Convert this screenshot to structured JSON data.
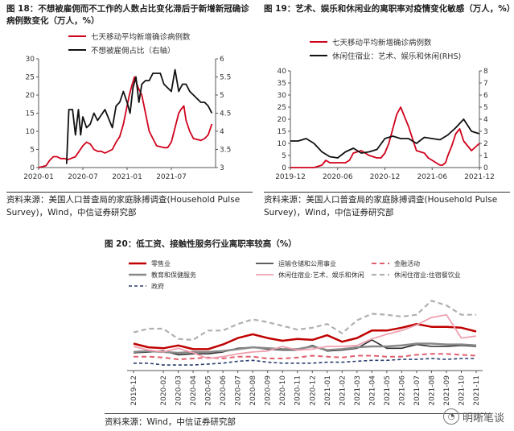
{
  "fig18": {
    "title": "图 18：不想被雇佣而不工作的人数占比变化滞后于新增新冠确诊病例数变化（万人，%）",
    "source": "资料来源：美国人口普查局的家庭脉搏调查(Household Pulse Survey)，Wind，中信证券研究部"
  },
  "fig19": {
    "title": "图 19：艺术、娱乐和休闲业的离职率对疫情变化敏感（万人，%）",
    "source": "资料来源：美国人口普查局的家庭脉搏调查(Household Pulse Survey)，Wind，中信证券研究部"
  },
  "fig20": {
    "title": "图 20：低工资、接触性服务行业离职率较高（%）",
    "source": "资料来源：Wind，中信证券研究部"
  },
  "watermark": {
    "text": "明晰笔谈",
    "icon": "wechat-icon"
  },
  "chart_data": [
    {
      "type": "line",
      "title": "图 18",
      "x_ticks": [
        "2020-01",
        "2020-07",
        "2021-01",
        "2021-07"
      ],
      "ylim": [
        0,
        30
      ],
      "y_ticks": [
        "0",
        "5",
        "10",
        "15",
        "20",
        "25",
        "30"
      ],
      "y2lim": [
        3,
        6
      ],
      "y2_ticks": [
        "3",
        "3.5",
        "4",
        "4.5",
        "5",
        "5.5",
        "6"
      ],
      "series": [
        {
          "name": "七天移动平均新增确诊病例数",
          "axis": "left",
          "color": "#d0021b",
          "x": [
            0,
            1,
            1.5,
            2,
            2.5,
            3,
            3.5,
            4,
            5,
            6,
            6.5,
            7,
            7.5,
            8,
            8.5,
            9,
            9.5,
            10,
            10.5,
            11,
            11.5,
            12,
            12.3,
            12.7,
            13,
            13.5,
            14,
            15,
            16,
            17,
            17.5,
            18,
            18.5,
            19,
            19.3,
            19.7,
            20,
            20.5,
            21,
            22,
            22.5,
            23,
            23.5
          ],
          "values": [
            0,
            0.5,
            2,
            3,
            3,
            2.5,
            2.5,
            2.2,
            3,
            6,
            7,
            6.5,
            5,
            4.5,
            4.5,
            4,
            4.5,
            5,
            7,
            8.5,
            12,
            17,
            20,
            23,
            25,
            22,
            20,
            10,
            6,
            5.5,
            5.5,
            7,
            11,
            15,
            16,
            17,
            13,
            10,
            8,
            7.5,
            8,
            9,
            12
          ]
        },
        {
          "name": "不想被雇佣占比（右轴）",
          "axis": "right",
          "color": "#111111",
          "x": [
            3.8,
            4.1,
            4.6,
            5,
            5.4,
            5.7,
            6,
            6.5,
            7,
            7.5,
            8,
            9,
            10,
            10.5,
            11,
            11.5,
            12,
            12.4,
            12.8,
            13.2,
            13.6,
            14,
            14.5,
            15,
            15.5,
            16,
            16.5,
            17,
            18,
            18.5,
            19,
            19.5,
            20,
            20.5,
            21,
            21.5,
            22,
            22.5,
            23,
            23.5
          ],
          "values": [
            3.1,
            4.6,
            4.6,
            3.9,
            4.6,
            3.9,
            4.4,
            4.1,
            4.2,
            4.5,
            4.3,
            4.6,
            4.1,
            4.7,
            4.8,
            5.1,
            4.8,
            4.5,
            5.2,
            5.5,
            4.8,
            5.3,
            5.4,
            5.4,
            5.6,
            5.6,
            5.6,
            5.3,
            5.1,
            5.7,
            5.1,
            5.3,
            5.3,
            5.1,
            5.0,
            4.9,
            4.8,
            4.8,
            4.7,
            4.5
          ]
        }
      ]
    },
    {
      "type": "line",
      "title": "图 19",
      "x_ticks": [
        "2019-12",
        "2020-06",
        "2020-12",
        "2021-06",
        "2021-12"
      ],
      "ylim": [
        0,
        40
      ],
      "y_ticks": [
        "0",
        "5",
        "10",
        "15",
        "20",
        "25",
        "30",
        "35",
        "40"
      ],
      "y2lim": [
        0,
        8
      ],
      "y2_ticks": [
        "0",
        "1",
        "2",
        "3",
        "4",
        "5",
        "6",
        "7",
        "8"
      ],
      "series": [
        {
          "name": "七天移动平均新增确诊病例数",
          "axis": "left",
          "color": "#d0021b",
          "x": [
            0,
            2,
            3,
            4,
            4.5,
            5,
            6,
            7,
            7.5,
            8,
            9,
            10,
            11,
            11.5,
            12,
            12.5,
            13,
            13.5,
            14,
            15,
            16,
            17,
            17.5,
            18,
            18.5,
            19,
            19.3,
            19.7,
            20,
            20.5,
            21,
            21.5,
            22,
            23,
            24
          ],
          "values": [
            0,
            0,
            0,
            1,
            3,
            2,
            2,
            2,
            3,
            6,
            7,
            5,
            4,
            4,
            6,
            10,
            16,
            22,
            25,
            17,
            7,
            6,
            4,
            3,
            2,
            1,
            1,
            2,
            5,
            9,
            14,
            16,
            11,
            7,
            10
          ]
        },
        {
          "name": "休闲住宿业：艺术、娱乐和休闲(RHS)",
          "axis": "right",
          "color": "#111111",
          "x": [
            0,
            1,
            2,
            3,
            4,
            5,
            6,
            7,
            8,
            9,
            10,
            11,
            12,
            13,
            14,
            15,
            16,
            17,
            18,
            19,
            20,
            21,
            22,
            23,
            24
          ],
          "values": [
            2.2,
            2.2,
            2.4,
            2.0,
            1.3,
            0.9,
            0.8,
            1.3,
            1.6,
            1.2,
            1.3,
            1.5,
            2.4,
            2.6,
            2.4,
            2.4,
            2.0,
            2.5,
            2.4,
            2.3,
            2.7,
            3.3,
            4.0,
            3.0,
            2.8
          ]
        }
      ]
    },
    {
      "type": "line",
      "title": "图 20",
      "categories": [
        "2019-12",
        "2020-01",
        "2020-02",
        "2020-03",
        "2020-04",
        "2020-05",
        "2020-06",
        "2020-07",
        "2020-08",
        "2020-09",
        "2020-10",
        "2020-11",
        "2020-12",
        "2021-01",
        "2021-02",
        "2021-03",
        "2021-04",
        "2021-05",
        "2021-06",
        "2021-07",
        "2021-08",
        "2021-09",
        "2021-10",
        "2021-11"
      ],
      "x_ticks": [
        "2019-12",
        "2020-02",
        "2020-03",
        "2020-04",
        "2020-05",
        "2020-06",
        "2020-07",
        "2020-08",
        "2020-09",
        "2020-10",
        "2020-11",
        "2020-12",
        "2021-01",
        "2021-02",
        "2021-03",
        "2021-04",
        "2021-05",
        "2021-06",
        "2021-07",
        "2021-08",
        "2021-09",
        "2021-10",
        "2021-11"
      ],
      "ylim": [
        0,
        9
      ],
      "series": [
        {
          "name": "零售业",
          "color": "#c00000",
          "dash": "solid",
          "width": 2.5,
          "values": [
            2.9,
            2.5,
            2.4,
            2.7,
            2.3,
            2.3,
            2.8,
            3.5,
            3.9,
            3.5,
            3.2,
            3.4,
            3.3,
            3.8,
            3.1,
            3.5,
            4.3,
            4.3,
            4.6,
            5.0,
            4.7,
            4.7,
            4.6,
            4.2
          ]
        },
        {
          "name": "运输仓储和公用事业",
          "color": "#2b2b2b",
          "dash": "solid",
          "width": 1.6,
          "values": [
            1.9,
            2.0,
            2.1,
            1.7,
            1.8,
            1.8,
            2.0,
            2.4,
            2.5,
            2.3,
            2.2,
            2.2,
            2.7,
            2.1,
            2.2,
            2.4,
            3.3,
            2.4,
            2.4,
            2.8,
            2.6,
            2.6,
            2.7,
            2.6
          ]
        },
        {
          "name": "金融活动",
          "color": "#e06070",
          "dash": "6,4",
          "width": 2.0,
          "values": [
            1.5,
            1.5,
            1.4,
            1.2,
            1.3,
            1.4,
            1.3,
            1.5,
            1.5,
            1.3,
            1.3,
            1.4,
            1.6,
            1.5,
            1.4,
            1.6,
            1.6,
            1.5,
            1.5,
            1.7,
            1.8,
            1.8,
            1.7,
            1.6
          ]
        },
        {
          "name": "教育和保健服务",
          "color": "#888888",
          "dash": "solid",
          "width": 2.5,
          "values": [
            2.0,
            2.1,
            2.0,
            1.9,
            2.0,
            2.0,
            2.1,
            2.3,
            2.5,
            2.4,
            2.3,
            2.3,
            2.6,
            2.2,
            2.3,
            2.5,
            2.6,
            2.6,
            2.7,
            2.9,
            2.9,
            2.8,
            2.8,
            2.7
          ]
        },
        {
          "name": "休闲住宿业:艺术、娱乐和休闲",
          "color": "#f0a0b0",
          "dash": "solid",
          "width": 1.8,
          "values": [
            2.6,
            2.2,
            2.0,
            2.4,
            1.9,
            1.3,
            1.5,
            1.8,
            2.0,
            2.1,
            2.6,
            2.2,
            2.3,
            2.6,
            2.6,
            2.7,
            3.4,
            3.9,
            4.3,
            4.9,
            5.7,
            6.0,
            3.5,
            3.7
          ]
        },
        {
          "name": "休闲住宿业:住宿餐饮业",
          "color": "#b0b0b0",
          "dash": "6,4",
          "width": 2.2,
          "values": [
            4.1,
            4.5,
            4.5,
            3.4,
            3.3,
            4.3,
            4.3,
            5.0,
            5.5,
            5.2,
            4.8,
            4.4,
            4.6,
            5.0,
            4.0,
            5.4,
            6.1,
            6.0,
            5.8,
            6.0,
            7.5,
            7.0,
            6.0,
            6.0
          ]
        },
        {
          "name": "政府",
          "color": "#2a3f6f",
          "dash": "4,3",
          "width": 1.6,
          "values": [
            0.8,
            0.8,
            0.6,
            0.6,
            0.6,
            0.7,
            0.8,
            1.0,
            1.1,
            0.9,
            0.8,
            0.8,
            0.8,
            0.9,
            0.9,
            1.0,
            1.1,
            1.1,
            1.2,
            1.2,
            1.3,
            1.2,
            1.3,
            1.3
          ]
        }
      ]
    }
  ]
}
